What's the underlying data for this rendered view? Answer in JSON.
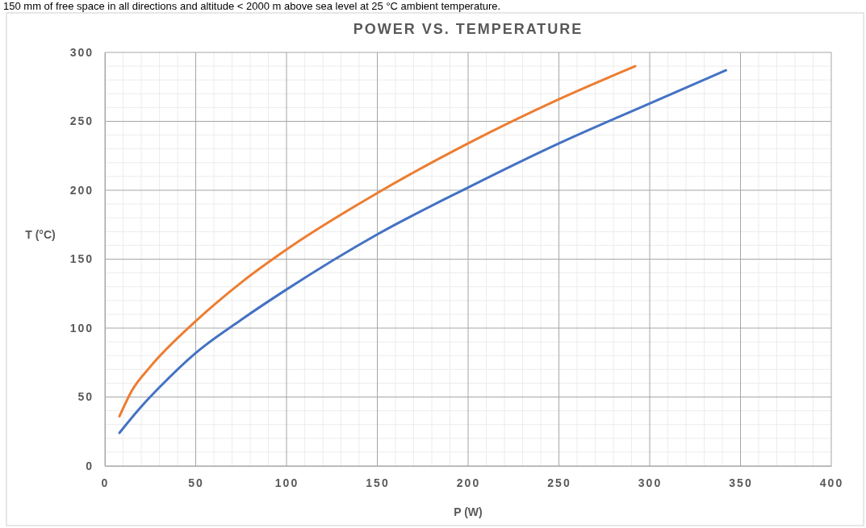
{
  "chart_data": {
    "type": "line",
    "title": "POWER VS. TEMPERATURE",
    "xlabel": "P (W)",
    "ylabel": "T (°C)",
    "annotations": [
      "150 mm of free space in all directions and altitude < 2000 m above sea level at 25 °C ambient temperature."
    ],
    "series": [
      {
        "color": "#4472c4",
        "x": [
          8,
          20,
          30,
          50,
          75,
          100,
          150,
          200,
          250,
          300,
          342
        ],
        "values": [
          24,
          43,
          57,
          82,
          106,
          128,
          168,
          202,
          234,
          263,
          287
        ]
      },
      {
        "color": "#ed7d31",
        "x": [
          8,
          15,
          25,
          50,
          75,
          100,
          150,
          200,
          250,
          292
        ],
        "values": [
          36,
          55,
          72,
          105,
          133,
          157,
          198,
          234,
          266,
          290
        ]
      }
    ],
    "xlim": [
      0,
      400
    ],
    "xticks": [
      0,
      50,
      100,
      150,
      200,
      250,
      300,
      350,
      400
    ],
    "ylim": [
      0,
      300
    ],
    "yticks": [
      0,
      50,
      100,
      150,
      200,
      250,
      300
    ],
    "grid": true,
    "marker": "none",
    "line_style": "solid"
  }
}
